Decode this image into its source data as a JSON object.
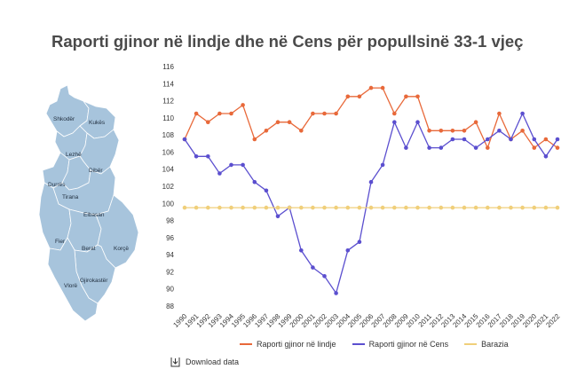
{
  "title": "Raporti gjinor në lindje dhe në Cens për popullsinë 33-1 vjeç",
  "map": {
    "regions": [
      {
        "name": "Shkodër"
      },
      {
        "name": "Kukës"
      },
      {
        "name": "Lezhë"
      },
      {
        "name": "Dibër"
      },
      {
        "name": "Durrës"
      },
      {
        "name": "Tirana"
      },
      {
        "name": "Elbasan"
      },
      {
        "name": "Fier"
      },
      {
        "name": "Berat"
      },
      {
        "name": "Korçë"
      },
      {
        "name": "Gjirokastër"
      },
      {
        "name": "Vlorë"
      }
    ],
    "fill_color": "#a7c4dc",
    "border_color": "#ffffff"
  },
  "chart_data": {
    "type": "line",
    "x": [
      "1990",
      "1991",
      "1992",
      "1993",
      "1994",
      "1995",
      "1996",
      "1997",
      "1998",
      "1999",
      "2000",
      "2001",
      "2002",
      "2003",
      "2004",
      "2005",
      "2006",
      "2007",
      "2008",
      "2009",
      "2010",
      "2011",
      "2012",
      "2013",
      "2014",
      "2015",
      "2016",
      "2017",
      "2018",
      "2019",
      "2020",
      "2021",
      "2022"
    ],
    "ylim": [
      88,
      116
    ],
    "yticks": [
      88,
      90,
      92,
      94,
      96,
      98,
      100,
      102,
      104,
      106,
      108,
      110,
      112,
      114,
      116
    ],
    "grid": false,
    "legend_position": "bottom",
    "series": [
      {
        "name": "Raporti gjinor në lindje",
        "color": "#e8693a",
        "values": [
          107.5,
          110.5,
          109.5,
          110.5,
          110.5,
          111.5,
          107.5,
          108.5,
          109.5,
          109.5,
          108.5,
          110.5,
          110.5,
          110.5,
          112.5,
          112.5,
          113.5,
          113.5,
          110.5,
          112.5,
          112.5,
          108.5,
          108.5,
          108.5,
          108.5,
          109.5,
          106.5,
          110.5,
          107.5,
          108.5,
          106.5,
          107.5,
          106.5
        ]
      },
      {
        "name": "Raporti gjinor në Cens",
        "color": "#5b4fcf",
        "values": [
          107.5,
          105.5,
          105.5,
          103.5,
          104.5,
          104.5,
          102.5,
          101.5,
          98.5,
          99.5,
          94.5,
          92.5,
          91.5,
          89.5,
          94.5,
          95.5,
          102.5,
          104.5,
          109.5,
          106.5,
          109.5,
          106.5,
          106.5,
          107.5,
          107.5,
          106.5,
          107.5,
          108.5,
          107.5,
          110.5,
          107.5,
          105.5,
          107.5
        ]
      },
      {
        "name": "Barazia",
        "color": "#f0cf7a",
        "values": [
          99.5,
          99.5,
          99.5,
          99.5,
          99.5,
          99.5,
          99.5,
          99.5,
          99.5,
          99.5,
          99.5,
          99.5,
          99.5,
          99.5,
          99.5,
          99.5,
          99.5,
          99.5,
          99.5,
          99.5,
          99.5,
          99.5,
          99.5,
          99.5,
          99.5,
          99.5,
          99.5,
          99.5,
          99.5,
          99.5,
          99.5,
          99.5,
          99.5
        ]
      }
    ]
  },
  "download": {
    "label": "Download data",
    "icon": "download-icon"
  }
}
